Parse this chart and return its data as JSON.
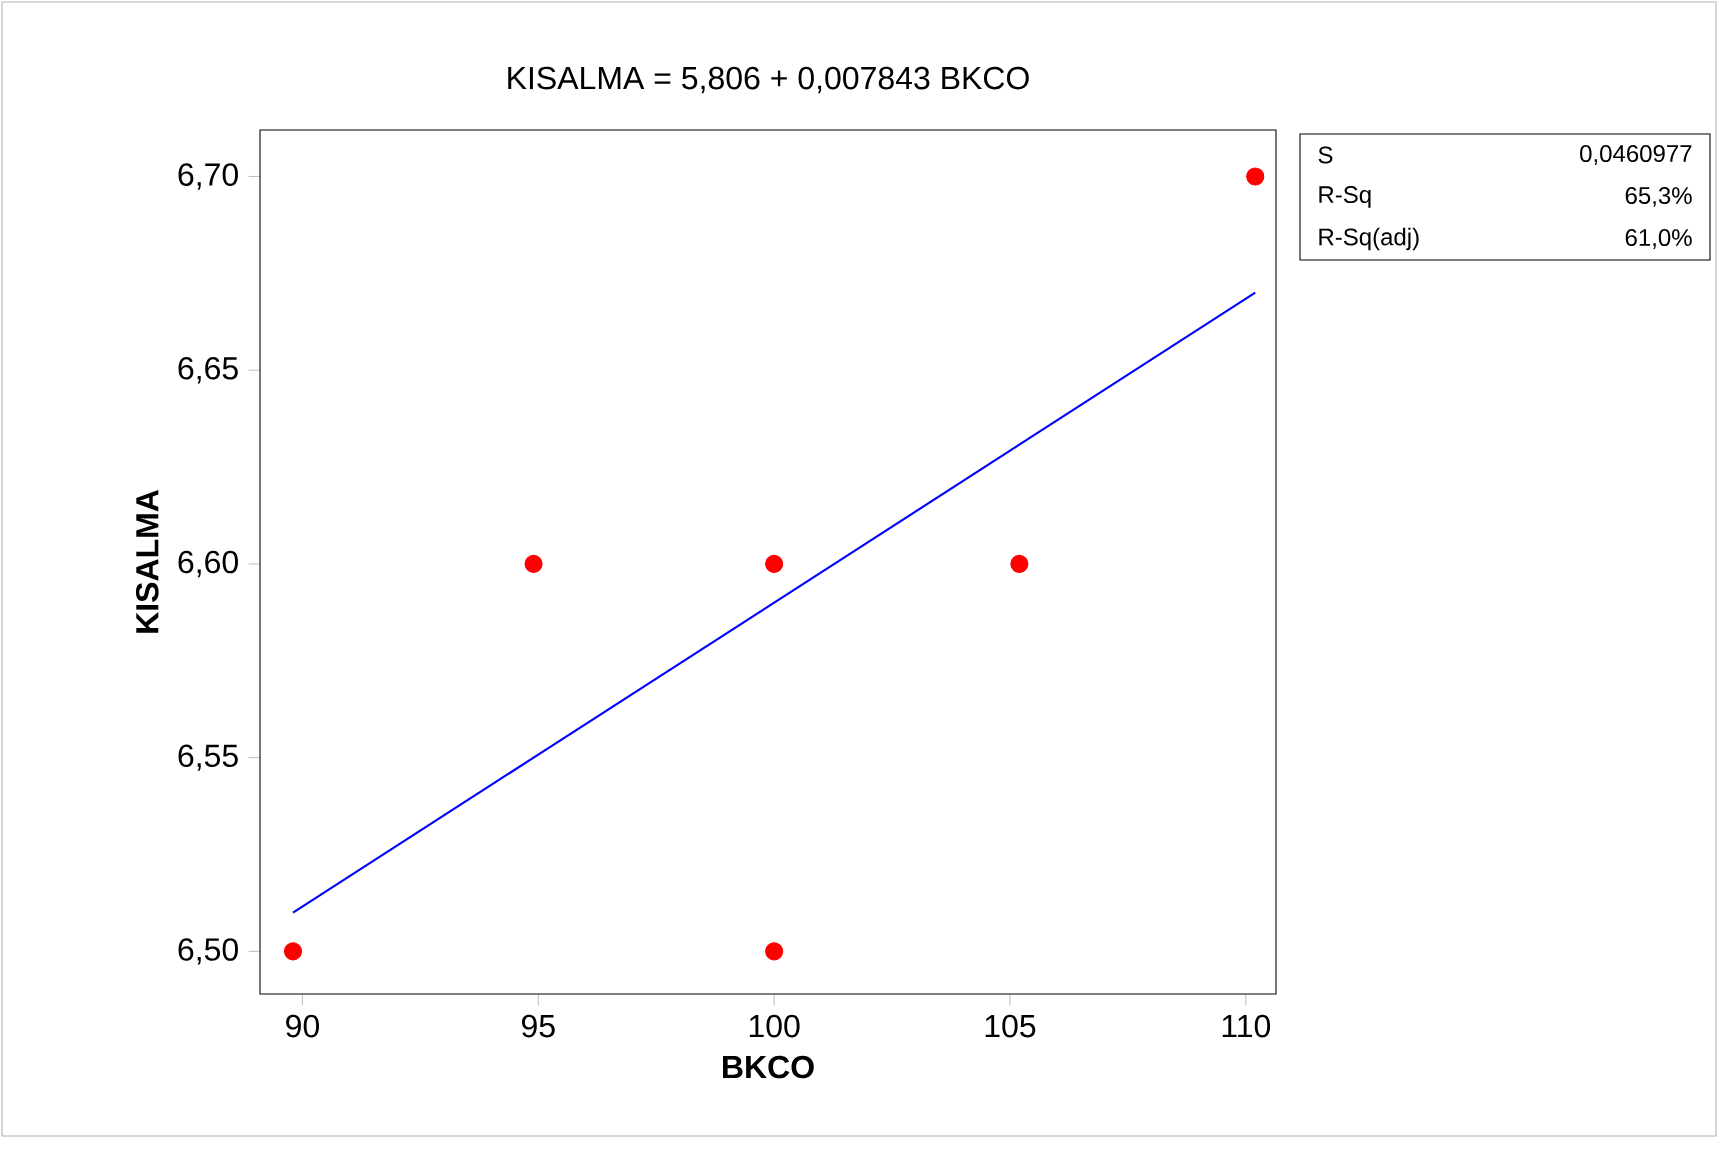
{
  "chart_data": {
    "type": "scatter",
    "title": "KISALMA =  5,806 + 0,007843 BKCO",
    "xlabel": "BKCO",
    "ylabel": "KISALMA",
    "xlim": [
      89.1,
      110.64
    ],
    "ylim": [
      6.489,
      6.712
    ],
    "xticks": [
      90,
      95,
      100,
      105,
      110
    ],
    "yticks": [
      {
        "value": 6.5,
        "label": "6,50"
      },
      {
        "value": 6.55,
        "label": "6,55"
      },
      {
        "value": 6.6,
        "label": "6,60"
      },
      {
        "value": 6.65,
        "label": "6,65"
      },
      {
        "value": 6.7,
        "label": "6,70"
      }
    ],
    "series": [
      {
        "type": "line",
        "color": "#0000ff",
        "line_style": "solid",
        "x": [
          89.8,
          110.2
        ],
        "values": [
          6.51,
          6.67
        ]
      },
      {
        "type": "scatter",
        "color": "#ff0000",
        "marker": "circle",
        "x": [
          89.8,
          94.9,
          100,
          100,
          105.2,
          110.2
        ],
        "values": [
          6.5,
          6.6,
          6.6,
          6.5,
          6.6,
          6.7
        ]
      }
    ],
    "annotations": [
      "S",
      "0,0460977",
      "R-Sq",
      "65,3%",
      "R-Sq(adj)",
      "61,0%"
    ]
  }
}
